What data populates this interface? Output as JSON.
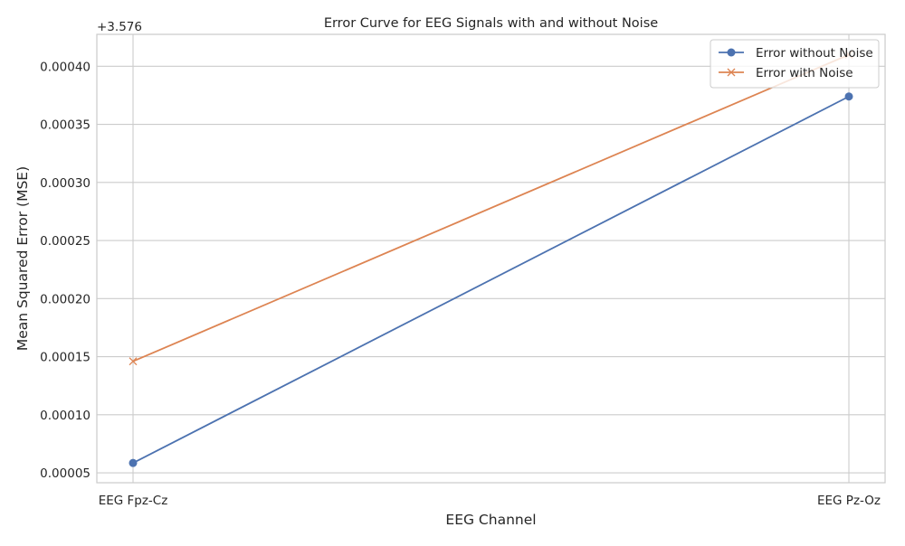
{
  "chart_data": {
    "type": "line",
    "title": "Error Curve for EEG Signals with and without Noise",
    "xlabel": "EEG Channel",
    "ylabel": "Mean Squared Error (MSE)",
    "offset_label": "+3.576",
    "categories": [
      "EEG Fpz-Cz",
      "EEG Pz-Oz"
    ],
    "y_ticks": [
      "0.00005",
      "0.00010",
      "0.00015",
      "0.00020",
      "0.00025",
      "0.00030",
      "0.00035",
      "0.00040"
    ],
    "ylim": [
      4.15e-05,
      0.0004275
    ],
    "grid": true,
    "legend_position": "top-right",
    "series": [
      {
        "name": "Error without Noise",
        "marker": "circle",
        "color": "#4c72b0",
        "values": [
          5.85e-05,
          0.000374
        ]
      },
      {
        "name": "Error with Noise",
        "marker": "x",
        "color": "#dd8452",
        "values": [
          0.000146,
          0.00041
        ]
      }
    ]
  }
}
